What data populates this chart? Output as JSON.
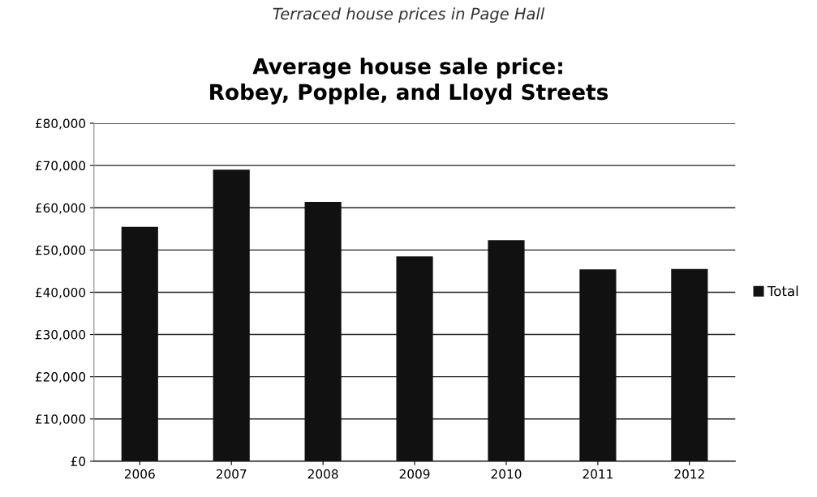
{
  "chart_data": {
    "type": "bar",
    "title": "Average house sale price:\nRobey, Popple, and Lloyd Streets",
    "subtitle": "Terraced house prices in Page Hall",
    "categories": [
      "2006",
      "2007",
      "2008",
      "2009",
      "2010",
      "2011",
      "2012"
    ],
    "series": [
      {
        "name": "Total",
        "color": "#111111",
        "values": [
          55500,
          69000,
          61400,
          48500,
          52300,
          45400,
          45500
        ]
      }
    ],
    "ylim": [
      0,
      80000
    ],
    "yticks": [
      {
        "value": 0,
        "label": "£0"
      },
      {
        "value": 10000,
        "label": "£10,000"
      },
      {
        "value": 20000,
        "label": "£20,000"
      },
      {
        "value": 30000,
        "label": "£30,000"
      },
      {
        "value": 40000,
        "label": "£40,000"
      },
      {
        "value": 50000,
        "label": "£50,000"
      },
      {
        "value": 60000,
        "label": "£60,000"
      },
      {
        "value": 70000,
        "label": "£70,000"
      },
      {
        "value": 80000,
        "label": "£80,000"
      }
    ],
    "grid": "y",
    "legend": "right"
  }
}
